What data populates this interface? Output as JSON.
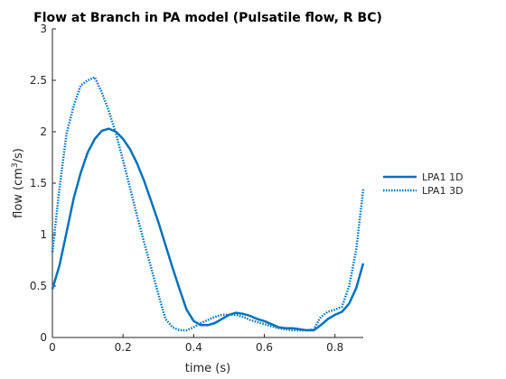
{
  "chart_data": {
    "type": "line",
    "title": "Flow at Branch in PA model (Pulsatile flow, R BC)",
    "xlabel": "time (s)",
    "ylabel_main": "flow (cm",
    "ylabel_sup": "3",
    "ylabel_tail": "/s)",
    "xlim": [
      0,
      0.88
    ],
    "ylim": [
      0,
      3
    ],
    "xticks": [
      0,
      0.2,
      0.4,
      0.6,
      0.8
    ],
    "xtick_labels": [
      "0",
      "0.2",
      "0.4",
      "0.6",
      "0.8"
    ],
    "yticks": [
      0,
      0.5,
      1,
      1.5,
      2,
      2.5,
      3
    ],
    "ytick_labels": [
      "0",
      "0.5",
      "1",
      "1.5",
      "2",
      "2.5",
      "3"
    ],
    "grid": false,
    "legend_position": "outside-right",
    "series": [
      {
        "name": "LPA1 1D",
        "style": "solid",
        "color": "#0072BD",
        "x": [
          0,
          0.02,
          0.04,
          0.06,
          0.08,
          0.1,
          0.12,
          0.14,
          0.16,
          0.18,
          0.2,
          0.22,
          0.24,
          0.26,
          0.28,
          0.3,
          0.32,
          0.34,
          0.36,
          0.38,
          0.4,
          0.42,
          0.44,
          0.46,
          0.48,
          0.5,
          0.52,
          0.54,
          0.56,
          0.58,
          0.6,
          0.62,
          0.64,
          0.66,
          0.68,
          0.7,
          0.72,
          0.74,
          0.76,
          0.78,
          0.8,
          0.82,
          0.84,
          0.86,
          0.88
        ],
        "y": [
          0.47,
          0.7,
          1.02,
          1.35,
          1.6,
          1.8,
          1.93,
          2.01,
          2.03,
          2.0,
          1.93,
          1.83,
          1.69,
          1.52,
          1.32,
          1.12,
          0.9,
          0.68,
          0.47,
          0.27,
          0.16,
          0.12,
          0.12,
          0.14,
          0.18,
          0.22,
          0.24,
          0.23,
          0.21,
          0.18,
          0.16,
          0.13,
          0.1,
          0.09,
          0.09,
          0.08,
          0.07,
          0.07,
          0.12,
          0.18,
          0.22,
          0.25,
          0.33,
          0.48,
          0.72
        ]
      },
      {
        "name": "LPA1 3D",
        "style": "dotted",
        "color": "#0072BD",
        "x": [
          0,
          0.02,
          0.04,
          0.06,
          0.08,
          0.1,
          0.12,
          0.14,
          0.16,
          0.18,
          0.2,
          0.22,
          0.24,
          0.26,
          0.28,
          0.3,
          0.32,
          0.34,
          0.36,
          0.38,
          0.4,
          0.42,
          0.44,
          0.46,
          0.48,
          0.5,
          0.52,
          0.54,
          0.56,
          0.58,
          0.6,
          0.62,
          0.64,
          0.66,
          0.68,
          0.7,
          0.72,
          0.74,
          0.76,
          0.78,
          0.8,
          0.82,
          0.84,
          0.86,
          0.88
        ],
        "y": [
          0.83,
          1.45,
          1.98,
          2.25,
          2.45,
          2.5,
          2.53,
          2.38,
          2.2,
          1.98,
          1.72,
          1.45,
          1.18,
          0.92,
          0.67,
          0.42,
          0.18,
          0.1,
          0.07,
          0.07,
          0.1,
          0.14,
          0.17,
          0.2,
          0.22,
          0.22,
          0.22,
          0.2,
          0.17,
          0.15,
          0.13,
          0.11,
          0.09,
          0.08,
          0.07,
          0.07,
          0.07,
          0.08,
          0.2,
          0.25,
          0.27,
          0.3,
          0.5,
          0.85,
          1.44
        ]
      }
    ]
  }
}
